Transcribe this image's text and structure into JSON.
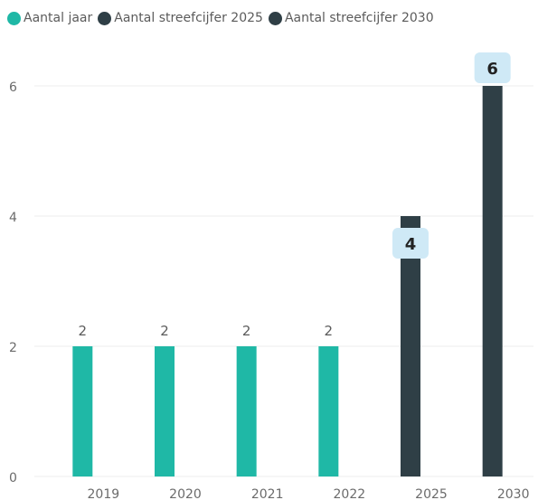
{
  "chart_data": {
    "type": "bar",
    "categories": [
      "2019",
      "2020",
      "2021",
      "2022",
      "2025",
      "2030"
    ],
    "series": [
      {
        "name": "Aantal jaar",
        "color": "#1fb8a6",
        "values": [
          2,
          2,
          2,
          2,
          null,
          null
        ]
      },
      {
        "name": "Aantal streefcijfer 2025",
        "color": "#2f3f46",
        "values": [
          null,
          null,
          null,
          null,
          4,
          null
        ]
      },
      {
        "name": "Aantal streefcijfer 2030",
        "color": "#2f3f46",
        "values": [
          null,
          null,
          null,
          null,
          null,
          6
        ]
      }
    ],
    "data_labels": [
      "2",
      "2",
      "2",
      "2",
      "4",
      "6"
    ],
    "yticks": [
      0,
      2,
      4,
      6
    ],
    "ylim": [
      0,
      6
    ],
    "grid": true,
    "legend_position": "top-left",
    "callout_color": "#cfe9f6"
  }
}
